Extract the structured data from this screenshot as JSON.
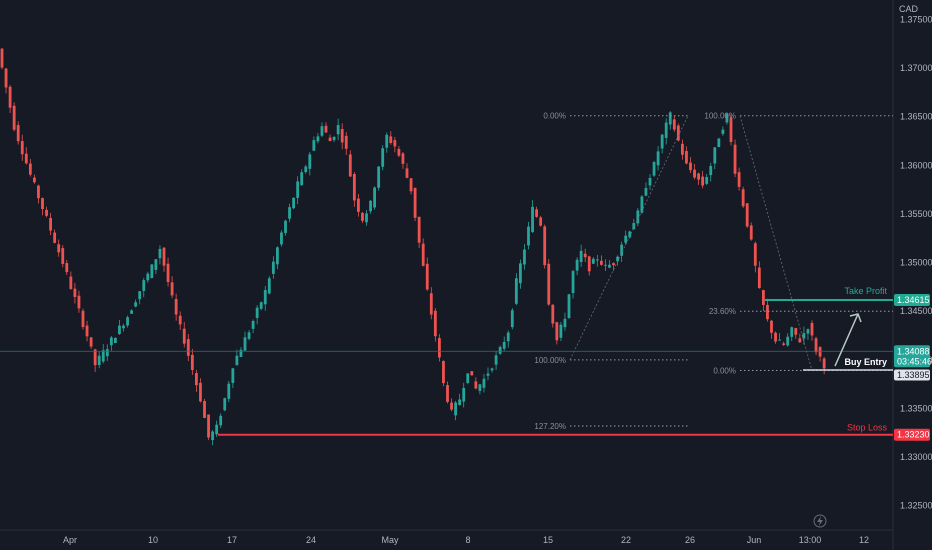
{
  "chart_data": {
    "type": "candlestick",
    "currency": "CAD",
    "ylim": [
      1.3225,
      1.377
    ],
    "y_ticks": [
      "1.37500",
      "1.37000",
      "1.36500",
      "1.36000",
      "1.35500",
      "1.35000",
      "1.34500",
      "1.34000",
      "1.33500",
      "1.33000",
      "1.32500"
    ],
    "x_ticks": [
      "Apr",
      "10",
      "17",
      "24",
      "May",
      "8",
      "15",
      "22",
      "26",
      "Jun",
      "13:00",
      "12"
    ],
    "price_path": [
      [
        0,
        1.372
      ],
      [
        2,
        1.364
      ],
      [
        4,
        1.359
      ],
      [
        6,
        1.3545
      ],
      [
        8,
        1.35
      ],
      [
        11,
        1.3425
      ],
      [
        12,
        1.3395
      ],
      [
        14,
        1.342
      ],
      [
        16,
        1.3445
      ],
      [
        18,
        1.348
      ],
      [
        19,
        1.3495
      ],
      [
        20,
        1.3515
      ],
      [
        21,
        1.348
      ],
      [
        22,
        1.3445
      ],
      [
        23,
        1.342
      ],
      [
        24,
        1.339
      ],
      [
        25,
        1.336
      ],
      [
        26,
        1.332
      ],
      [
        27,
        1.333
      ],
      [
        28,
        1.336
      ],
      [
        29,
        1.3395
      ],
      [
        31,
        1.343
      ],
      [
        33,
        1.347
      ],
      [
        35,
        1.353
      ],
      [
        36,
        1.3555
      ],
      [
        37,
        1.358
      ],
      [
        38,
        1.36
      ],
      [
        39,
        1.3625
      ],
      [
        40,
        1.364
      ],
      [
        41,
        1.3625
      ],
      [
        42,
        1.364
      ],
      [
        43,
        1.3615
      ],
      [
        44,
        1.3565
      ],
      [
        45,
        1.3545
      ],
      [
        46,
        1.356
      ],
      [
        47,
        1.36
      ],
      [
        48,
        1.363
      ],
      [
        49,
        1.362
      ],
      [
        50,
        1.36
      ],
      [
        51,
        1.3575
      ],
      [
        52,
        1.352
      ],
      [
        53,
        1.347
      ],
      [
        54,
        1.3425
      ],
      [
        55,
        1.3375
      ],
      [
        56,
        1.3345
      ],
      [
        57,
        1.336
      ],
      [
        58,
        1.339
      ],
      [
        59,
        1.337
      ],
      [
        60,
        1.338
      ],
      [
        61,
        1.3395
      ],
      [
        62,
        1.341
      ],
      [
        63,
        1.343
      ],
      [
        64,
        1.348
      ],
      [
        65,
        1.3515
      ],
      [
        66,
        1.3555
      ],
      [
        67,
        1.354
      ],
      [
        68,
        1.346
      ],
      [
        69,
        1.342
      ],
      [
        70,
        1.3445
      ],
      [
        71,
        1.349
      ],
      [
        72,
        1.351
      ],
      [
        73,
        1.3495
      ],
      [
        74,
        1.3505
      ],
      [
        75,
        1.3495
      ],
      [
        76,
        1.35
      ],
      [
        77,
        1.352
      ],
      [
        78,
        1.3535
      ],
      [
        79,
        1.355
      ],
      [
        80,
        1.358
      ],
      [
        81,
        1.36
      ],
      [
        82,
        1.363
      ],
      [
        83,
        1.3651
      ],
      [
        84,
        1.3625
      ],
      [
        85,
        1.36
      ],
      [
        86,
        1.359
      ],
      [
        87,
        1.358
      ],
      [
        88,
        1.36
      ],
      [
        89,
        1.363
      ],
      [
        90,
        1.3651
      ],
      [
        91,
        1.3595
      ],
      [
        92,
        1.356
      ],
      [
        93,
        1.352
      ],
      [
        94,
        1.347
      ],
      [
        95,
        1.344
      ],
      [
        96,
        1.342
      ],
      [
        97,
        1.3415
      ],
      [
        98,
        1.343
      ],
      [
        99,
        1.342
      ],
      [
        100,
        1.3435
      ],
      [
        101,
        1.341
      ],
      [
        102,
        1.3395
      ],
      [
        103,
        1.34
      ],
      [
        104,
        1.3405
      ]
    ],
    "current_price": "1.34088",
    "countdown": "03:45:46",
    "entry_price": "1.33895",
    "take_profit": {
      "label": "Take Profit",
      "price": "1.34615"
    },
    "stop_loss": {
      "label": "Stop Loss",
      "price": "1.33230"
    },
    "buy_entry_label": "Buy Entry",
    "fib_left": {
      "from_price": 1.34,
      "to_price": 1.3651,
      "levels": [
        {
          "label": "0.00%",
          "price": 1.3651
        },
        {
          "label": "100.00%",
          "price": 1.34
        },
        {
          "label": "127.20%",
          "price": 1.3332
        }
      ]
    },
    "fib_right": {
      "from_price": 1.3651,
      "to_price": 1.3389,
      "levels": [
        {
          "label": "100.00%",
          "price": 1.3651
        },
        {
          "label": "23.60%",
          "price": 1.345
        },
        {
          "label": "0.00%",
          "price": 1.3389
        }
      ]
    },
    "colors": {
      "background": "#161a25",
      "up": "#26a69a",
      "down": "#ef5350",
      "stop_loss": "#f23645",
      "take_profit": "#22ab94",
      "axis_text": "#b2b5be"
    }
  }
}
